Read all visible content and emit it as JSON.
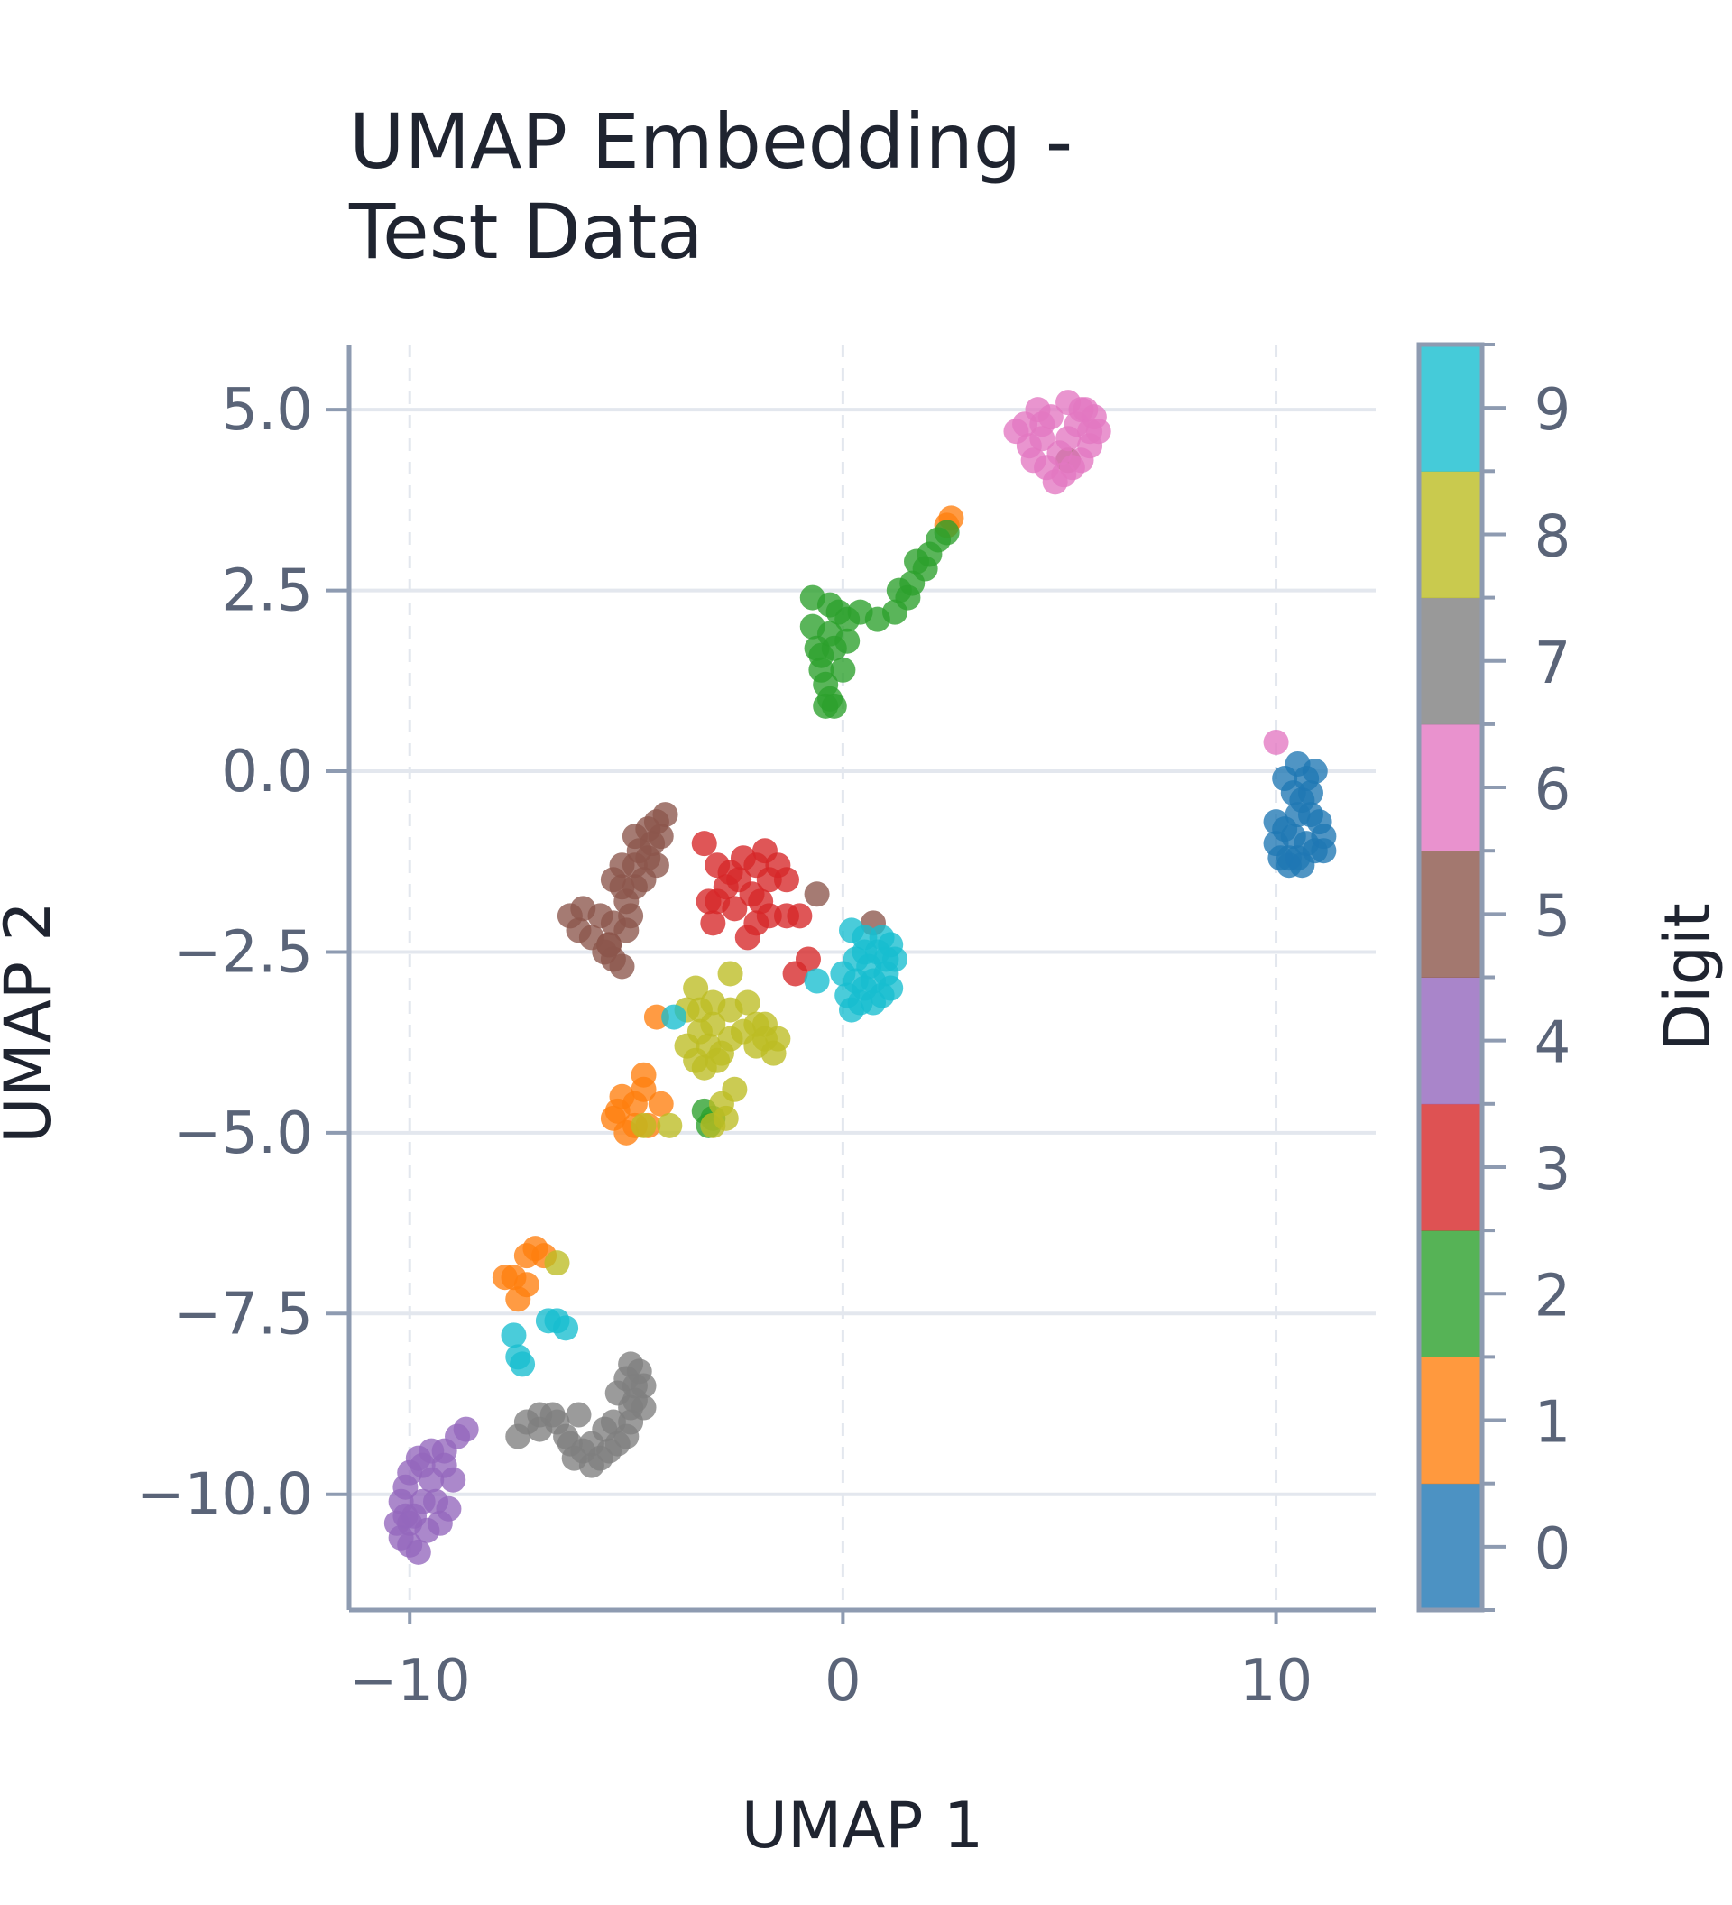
{
  "chart_data": {
    "type": "scatter",
    "title": "UMAP Embedding -\nTest Data",
    "xlabel": "UMAP 1",
    "ylabel": "UMAP 2",
    "xlim": [
      -11.4,
      12.3
    ],
    "ylim": [
      -11.6,
      5.9
    ],
    "x_ticks": [
      -10,
      0,
      10
    ],
    "y_ticks": [
      5.0,
      2.5,
      0.0,
      -2.5,
      -5.0,
      -7.5,
      -10.0
    ],
    "grid": true,
    "colorbar": {
      "label": "Digit",
      "categories": [
        0,
        1,
        2,
        3,
        4,
        5,
        6,
        7,
        8,
        9
      ],
      "colors": [
        "#1f77b4",
        "#ff7f0e",
        "#2ca02c",
        "#d62728",
        "#9467bd",
        "#8c564b",
        "#e377c2",
        "#7f7f7f",
        "#bcbd22",
        "#17becf"
      ]
    },
    "series": [
      {
        "digit": 0,
        "points": [
          [
            10.0,
            -1.0
          ],
          [
            10.2,
            -0.8
          ],
          [
            10.3,
            -1.2
          ],
          [
            10.5,
            -0.6
          ],
          [
            10.4,
            -0.3
          ],
          [
            10.2,
            -0.1
          ],
          [
            10.5,
            0.1
          ],
          [
            10.7,
            -0.1
          ],
          [
            10.9,
            0.0
          ],
          [
            10.6,
            -0.4
          ],
          [
            10.8,
            -0.6
          ],
          [
            11.0,
            -0.7
          ],
          [
            11.1,
            -0.9
          ],
          [
            10.9,
            -1.1
          ],
          [
            10.7,
            -1.0
          ],
          [
            10.5,
            -1.2
          ],
          [
            10.3,
            -1.3
          ],
          [
            10.1,
            -1.2
          ],
          [
            10.6,
            -1.3
          ],
          [
            11.1,
            -1.1
          ],
          [
            10.0,
            -0.7
          ],
          [
            10.4,
            -0.9
          ],
          [
            10.8,
            -0.3
          ]
        ]
      },
      {
        "digit": 1,
        "points": [
          [
            2.5,
            3.5
          ],
          [
            2.4,
            3.4
          ],
          [
            -4.3,
            -3.4
          ],
          [
            -4.6,
            -4.2
          ],
          [
            -4.8,
            -4.6
          ],
          [
            -5.1,
            -4.5
          ],
          [
            -5.3,
            -4.8
          ],
          [
            -5.0,
            -5.0
          ],
          [
            -4.5,
            -4.9
          ],
          [
            -4.2,
            -4.6
          ],
          [
            -4.6,
            -4.4
          ],
          [
            -5.2,
            -4.7
          ],
          [
            -4.8,
            -4.9
          ],
          [
            -7.3,
            -6.7
          ],
          [
            -7.1,
            -6.6
          ],
          [
            -6.9,
            -6.7
          ],
          [
            -7.6,
            -7.0
          ],
          [
            -7.3,
            -7.1
          ],
          [
            -7.5,
            -7.3
          ],
          [
            -7.8,
            -7.0
          ]
        ]
      },
      {
        "digit": 2,
        "points": [
          [
            -0.7,
            2.4
          ],
          [
            -0.3,
            2.3
          ],
          [
            -0.1,
            2.2
          ],
          [
            0.1,
            2.1
          ],
          [
            0.4,
            2.2
          ],
          [
            0.8,
            2.1
          ],
          [
            1.2,
            2.2
          ],
          [
            1.5,
            2.4
          ],
          [
            1.6,
            2.6
          ],
          [
            1.9,
            2.8
          ],
          [
            2.0,
            3.0
          ],
          [
            2.2,
            3.2
          ],
          [
            2.4,
            3.3
          ],
          [
            -0.7,
            2.0
          ],
          [
            -0.6,
            1.7
          ],
          [
            -0.5,
            1.4
          ],
          [
            -0.4,
            1.2
          ],
          [
            -0.3,
            1.0
          ],
          [
            -0.4,
            0.9
          ],
          [
            -0.2,
            0.9
          ],
          [
            -0.5,
            1.6
          ],
          [
            -0.2,
            1.7
          ],
          [
            0.1,
            1.8
          ],
          [
            -0.3,
            1.9
          ],
          [
            0.0,
            1.4
          ],
          [
            1.3,
            2.5
          ],
          [
            1.7,
            2.9
          ],
          [
            -3.1,
            -4.9
          ],
          [
            -3.0,
            -4.8
          ],
          [
            -3.2,
            -4.7
          ]
        ]
      },
      {
        "digit": 3,
        "points": [
          [
            -3.2,
            -1.0
          ],
          [
            -2.9,
            -1.3
          ],
          [
            -2.6,
            -1.4
          ],
          [
            -2.3,
            -1.2
          ],
          [
            -1.8,
            -1.1
          ],
          [
            -1.7,
            -1.5
          ],
          [
            -1.3,
            -1.5
          ],
          [
            -1.0,
            -2.0
          ],
          [
            -1.3,
            -2.0
          ],
          [
            -1.7,
            -2.0
          ],
          [
            -2.0,
            -2.1
          ],
          [
            -2.2,
            -2.3
          ],
          [
            -2.5,
            -1.9
          ],
          [
            -2.7,
            -1.6
          ],
          [
            -2.9,
            -1.8
          ],
          [
            -3.1,
            -1.8
          ],
          [
            -3.0,
            -2.1
          ],
          [
            -2.1,
            -1.7
          ],
          [
            -2.4,
            -1.5
          ],
          [
            -1.9,
            -1.8
          ],
          [
            -0.8,
            -2.6
          ],
          [
            -1.1,
            -2.8
          ],
          [
            -1.5,
            -1.3
          ],
          [
            -2.0,
            -1.3
          ]
        ]
      },
      {
        "digit": 4,
        "points": [
          [
            -8.7,
            -9.1
          ],
          [
            -8.9,
            -9.2
          ],
          [
            -9.2,
            -9.4
          ],
          [
            -9.5,
            -9.4
          ],
          [
            -9.8,
            -9.5
          ],
          [
            -10.0,
            -9.7
          ],
          [
            -10.1,
            -9.9
          ],
          [
            -10.2,
            -10.1
          ],
          [
            -10.1,
            -10.3
          ],
          [
            -10.3,
            -10.4
          ],
          [
            -10.2,
            -10.6
          ],
          [
            -10.0,
            -10.7
          ],
          [
            -9.8,
            -10.8
          ],
          [
            -9.6,
            -10.5
          ],
          [
            -9.3,
            -10.4
          ],
          [
            -9.1,
            -10.2
          ],
          [
            -9.0,
            -9.8
          ],
          [
            -9.2,
            -9.6
          ],
          [
            -9.5,
            -9.8
          ],
          [
            -9.7,
            -10.1
          ],
          [
            -9.9,
            -10.3
          ],
          [
            -9.4,
            -10.1
          ],
          [
            -9.7,
            -9.6
          ],
          [
            -10.0,
            -10.4
          ]
        ]
      },
      {
        "digit": 5,
        "points": [
          [
            -4.3,
            -0.7
          ],
          [
            -4.1,
            -0.6
          ],
          [
            -4.5,
            -0.8
          ],
          [
            -4.8,
            -0.9
          ],
          [
            -4.7,
            -1.1
          ],
          [
            -4.4,
            -1.0
          ],
          [
            -4.2,
            -0.9
          ],
          [
            -4.5,
            -1.2
          ],
          [
            -4.8,
            -1.3
          ],
          [
            -5.1,
            -1.3
          ],
          [
            -5.3,
            -1.5
          ],
          [
            -5.1,
            -1.6
          ],
          [
            -4.8,
            -1.6
          ],
          [
            -5.0,
            -1.8
          ],
          [
            -4.9,
            -2.0
          ],
          [
            -5.0,
            -2.2
          ],
          [
            -5.3,
            -2.1
          ],
          [
            -5.6,
            -2.0
          ],
          [
            -6.0,
            -1.9
          ],
          [
            -6.3,
            -2.0
          ],
          [
            -6.1,
            -2.2
          ],
          [
            -5.8,
            -2.3
          ],
          [
            -5.5,
            -2.5
          ],
          [
            -5.3,
            -2.6
          ],
          [
            -5.1,
            -2.7
          ],
          [
            -5.4,
            -2.4
          ],
          [
            -4.6,
            -1.5
          ],
          [
            -4.3,
            -1.3
          ],
          [
            5.2,
            4.3
          ],
          [
            0.7,
            -2.1
          ],
          [
            -0.6,
            -1.7
          ],
          [
            -5.4,
            -2.4
          ]
        ]
      },
      {
        "digit": 6,
        "points": [
          [
            10.0,
            0.4
          ],
          [
            4.2,
            4.8
          ],
          [
            4.5,
            5.0
          ],
          [
            4.8,
            4.9
          ],
          [
            4.6,
            4.6
          ],
          [
            4.3,
            4.5
          ],
          [
            4.0,
            4.7
          ],
          [
            4.4,
            4.3
          ],
          [
            4.7,
            4.2
          ],
          [
            5.0,
            4.4
          ],
          [
            5.2,
            4.6
          ],
          [
            5.4,
            4.8
          ],
          [
            5.6,
            5.0
          ],
          [
            5.8,
            4.9
          ],
          [
            5.9,
            4.7
          ],
          [
            5.7,
            4.5
          ],
          [
            5.5,
            4.3
          ],
          [
            5.3,
            4.2
          ],
          [
            5.1,
            4.1
          ],
          [
            4.9,
            4.0
          ],
          [
            5.2,
            5.1
          ],
          [
            5.5,
            5.0
          ],
          [
            5.7,
            4.7
          ],
          [
            4.6,
            4.8
          ]
        ]
      },
      {
        "digit": 7,
        "points": [
          [
            -4.9,
            -8.2
          ],
          [
            -4.7,
            -8.3
          ],
          [
            -4.6,
            -8.5
          ],
          [
            -4.8,
            -8.7
          ],
          [
            -4.6,
            -8.8
          ],
          [
            -4.9,
            -9.0
          ],
          [
            -5.0,
            -9.2
          ],
          [
            -5.2,
            -9.3
          ],
          [
            -5.4,
            -9.4
          ],
          [
            -5.6,
            -9.5
          ],
          [
            -5.8,
            -9.6
          ],
          [
            -6.0,
            -9.4
          ],
          [
            -6.2,
            -9.5
          ],
          [
            -6.4,
            -9.2
          ],
          [
            -6.6,
            -9.0
          ],
          [
            -6.7,
            -8.9
          ],
          [
            -7.0,
            -9.1
          ],
          [
            -7.3,
            -9.0
          ],
          [
            -7.5,
            -9.2
          ],
          [
            -5.2,
            -8.6
          ],
          [
            -5.0,
            -8.4
          ],
          [
            -6.1,
            -8.9
          ],
          [
            -5.5,
            -9.1
          ],
          [
            -6.3,
            -9.3
          ],
          [
            -7.0,
            -8.9
          ],
          [
            -5.8,
            -9.3
          ],
          [
            -4.9,
            -8.8
          ],
          [
            -5.3,
            -9.0
          ],
          [
            -4.8,
            -8.5
          ]
        ]
      },
      {
        "digit": 8,
        "points": [
          [
            -2.6,
            -2.8
          ],
          [
            -3.4,
            -3.0
          ],
          [
            -3.6,
            -3.3
          ],
          [
            -3.3,
            -3.6
          ],
          [
            -3.1,
            -3.8
          ],
          [
            -2.8,
            -3.9
          ],
          [
            -2.6,
            -3.7
          ],
          [
            -2.3,
            -3.6
          ],
          [
            -2.0,
            -3.5
          ],
          [
            -1.8,
            -3.7
          ],
          [
            -1.6,
            -3.9
          ],
          [
            -1.5,
            -3.7
          ],
          [
            -2.2,
            -3.2
          ],
          [
            -2.6,
            -3.3
          ],
          [
            -3.0,
            -3.5
          ],
          [
            -3.2,
            -4.1
          ],
          [
            -3.4,
            -4.0
          ],
          [
            -3.6,
            -3.8
          ],
          [
            -2.9,
            -4.0
          ],
          [
            -2.5,
            -4.4
          ],
          [
            -2.8,
            -4.6
          ],
          [
            -3.0,
            -4.9
          ],
          [
            -3.3,
            -3.3
          ],
          [
            -6.6,
            -6.8
          ],
          [
            -4.6,
            -4.9
          ],
          [
            -4.0,
            -4.9
          ],
          [
            -2.0,
            -3.8
          ],
          [
            -1.8,
            -3.5
          ],
          [
            -3.0,
            -3.2
          ],
          [
            -2.7,
            -4.8
          ]
        ]
      },
      {
        "digit": 9,
        "points": [
          [
            0.2,
            -2.2
          ],
          [
            0.5,
            -2.3
          ],
          [
            0.9,
            -2.3
          ],
          [
            1.1,
            -2.4
          ],
          [
            1.2,
            -2.6
          ],
          [
            1.0,
            -2.8
          ],
          [
            1.1,
            -3.0
          ],
          [
            0.9,
            -3.1
          ],
          [
            0.7,
            -3.2
          ],
          [
            0.5,
            -3.0
          ],
          [
            0.3,
            -2.9
          ],
          [
            0.1,
            -3.1
          ],
          [
            0.2,
            -3.3
          ],
          [
            0.4,
            -3.2
          ],
          [
            0.6,
            -2.7
          ],
          [
            0.8,
            -2.5
          ],
          [
            0.3,
            -2.6
          ],
          [
            0.0,
            -2.8
          ],
          [
            -0.6,
            -2.9
          ],
          [
            0.7,
            -2.9
          ],
          [
            0.5,
            -2.5
          ],
          [
            1.0,
            -2.6
          ],
          [
            -3.9,
            -3.4
          ],
          [
            -7.6,
            -7.8
          ],
          [
            -7.5,
            -8.1
          ],
          [
            -7.4,
            -8.2
          ],
          [
            -6.8,
            -7.6
          ],
          [
            -6.6,
            -7.6
          ],
          [
            -6.4,
            -7.7
          ]
        ]
      }
    ]
  }
}
